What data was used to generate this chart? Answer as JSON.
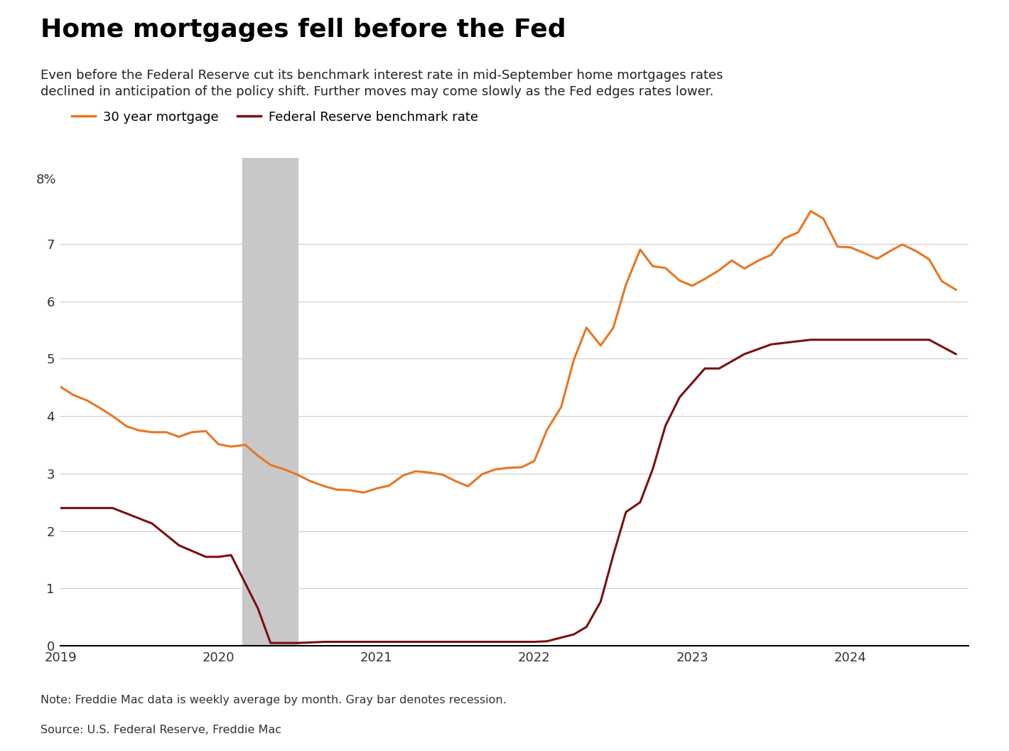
{
  "title": "Home mortgages fell before the Fed",
  "subtitle": "Even before the Federal Reserve cut its benchmark interest rate in mid-September home mortgages rates\ndeclined in anticipation of the policy shift. Further moves may come slowly as the Fed edges rates lower.",
  "note": "Note: Freddie Mac data is weekly average by month. Gray bar denotes recession.",
  "source": "Source: U.S. Federal Reserve, Freddie Mac",
  "legend": [
    "30 year mortgage",
    "Federal Reserve benchmark rate"
  ],
  "mortgage_color": "#E87722",
  "fed_color": "#7B1010",
  "recession_color": "#C8C8C8",
  "recession_start": 2020.15,
  "recession_end": 2020.5,
  "ylim": [
    0,
    8.5
  ],
  "yticks": [
    0,
    1,
    2,
    3,
    4,
    5,
    6,
    7
  ],
  "ytick_labels": [
    "0",
    "1",
    "2",
    "3",
    "4",
    "5",
    "6",
    "7"
  ],
  "ytop_label": "8%",
  "mortgage_dates": [
    2019.0,
    2019.08,
    2019.17,
    2019.25,
    2019.33,
    2019.42,
    2019.5,
    2019.58,
    2019.67,
    2019.75,
    2019.83,
    2019.92,
    2020.0,
    2020.08,
    2020.17,
    2020.25,
    2020.33,
    2020.42,
    2020.5,
    2020.58,
    2020.67,
    2020.75,
    2020.83,
    2020.92,
    2021.0,
    2021.08,
    2021.17,
    2021.25,
    2021.33,
    2021.42,
    2021.5,
    2021.58,
    2021.67,
    2021.75,
    2021.83,
    2021.92,
    2022.0,
    2022.08,
    2022.17,
    2022.25,
    2022.33,
    2022.42,
    2022.5,
    2022.58,
    2022.67,
    2022.75,
    2022.83,
    2022.92,
    2023.0,
    2023.08,
    2023.17,
    2023.25,
    2023.33,
    2023.42,
    2023.5,
    2023.58,
    2023.67,
    2023.75,
    2023.83,
    2023.92,
    2024.0,
    2024.08,
    2024.17,
    2024.25,
    2024.33,
    2024.42,
    2024.5,
    2024.58,
    2024.67
  ],
  "mortgage_values": [
    4.51,
    4.37,
    4.27,
    4.14,
    4.0,
    3.82,
    3.75,
    3.72,
    3.72,
    3.64,
    3.72,
    3.74,
    3.51,
    3.47,
    3.5,
    3.31,
    3.15,
    3.07,
    2.98,
    2.87,
    2.78,
    2.72,
    2.71,
    2.67,
    2.74,
    2.79,
    2.97,
    3.04,
    3.02,
    2.98,
    2.87,
    2.78,
    2.99,
    3.07,
    3.1,
    3.11,
    3.22,
    3.76,
    4.16,
    4.98,
    5.54,
    5.23,
    5.54,
    6.29,
    6.9,
    6.61,
    6.58,
    6.36,
    6.27,
    6.39,
    6.54,
    6.71,
    6.57,
    6.71,
    6.81,
    7.09,
    7.2,
    7.57,
    7.44,
    6.95,
    6.94,
    6.85,
    6.74,
    6.87,
    6.99,
    6.87,
    6.73,
    6.35,
    6.2
  ],
  "fed_dates": [
    2019.0,
    2019.17,
    2019.33,
    2019.58,
    2019.75,
    2019.92,
    2020.0,
    2020.08,
    2020.25,
    2020.33,
    2020.5,
    2020.67,
    2020.83,
    2020.92,
    2021.0,
    2021.25,
    2021.5,
    2021.75,
    2021.92,
    2022.0,
    2022.08,
    2022.25,
    2022.33,
    2022.42,
    2022.5,
    2022.58,
    2022.67,
    2022.75,
    2022.83,
    2022.92,
    2023.0,
    2023.08,
    2023.17,
    2023.33,
    2023.5,
    2023.75,
    2023.92,
    2024.0,
    2024.17,
    2024.5,
    2024.67
  ],
  "fed_values": [
    2.4,
    2.4,
    2.4,
    2.13,
    1.75,
    1.55,
    1.55,
    1.58,
    0.65,
    0.05,
    0.05,
    0.07,
    0.07,
    0.07,
    0.07,
    0.07,
    0.07,
    0.07,
    0.07,
    0.07,
    0.08,
    0.2,
    0.33,
    0.77,
    1.58,
    2.33,
    2.5,
    3.08,
    3.83,
    4.33,
    4.58,
    4.83,
    4.83,
    5.08,
    5.25,
    5.33,
    5.33,
    5.33,
    5.33,
    5.33,
    5.08
  ],
  "background_color": "#FFFFFF",
  "grid_color": "#CCCCCC",
  "xlim": [
    2019.0,
    2024.75
  ],
  "xticks": [
    2019,
    2020,
    2021,
    2022,
    2023,
    2024
  ]
}
